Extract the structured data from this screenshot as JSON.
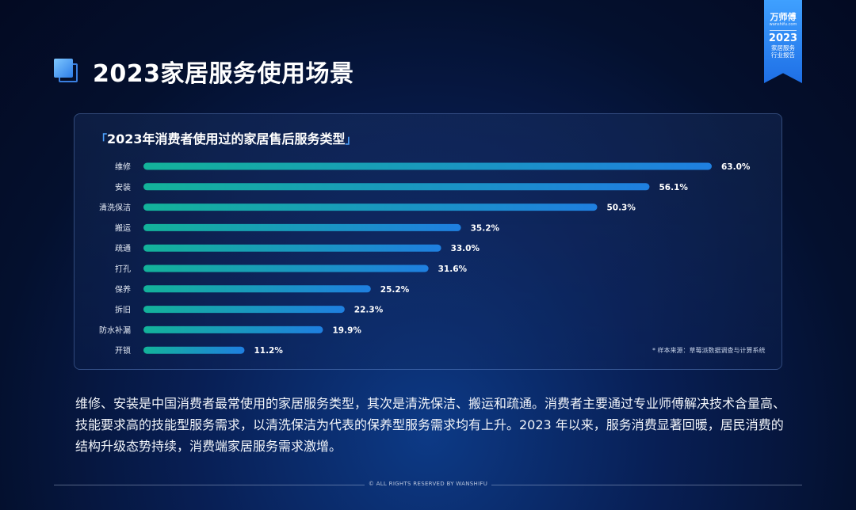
{
  "header": {
    "title": "2023家居服务使用场景"
  },
  "ribbon": {
    "brand": "万师傅",
    "site": "wanshifu.com",
    "year": "2023",
    "line1": "家居服务",
    "line2": "行业报告"
  },
  "chart_data": {
    "type": "bar",
    "orientation": "horizontal",
    "title": "2023年消费者使用过的家居售后服务类型",
    "categories": [
      "维修",
      "安装",
      "清洗保洁",
      "搬运",
      "疏通",
      "打孔",
      "保养",
      "拆旧",
      "防水补漏",
      "开锁"
    ],
    "values": [
      63.0,
      56.1,
      50.3,
      35.2,
      33.0,
      31.6,
      25.2,
      22.3,
      19.9,
      11.2
    ],
    "value_labels": [
      "63.0%",
      "56.1%",
      "50.3%",
      "35.2%",
      "33.0%",
      "31.6%",
      "25.2%",
      "22.3%",
      "19.9%",
      "11.2%"
    ],
    "unit": "%",
    "xlim": [
      0,
      63.0
    ],
    "grid": false,
    "bar_gradient": [
      "#13b39a",
      "#1f7fe0"
    ]
  },
  "source_note": "* 样本来源：草莓派数据调查与计算系统",
  "body_text": "维修、安装是中国消费者最常使用的家居服务类型，其次是清洗保洁、搬运和疏通。消费者主要通过专业师傅解决技术含量高、技能要求高的技能型服务需求，以清洗保洁为代表的保养型服务需求均有上升。2023 年以来，服务消费显著回暖，居民消费的结构升级态势持续，消费端家居服务需求激增。",
  "footer": "© ALL RIGHTS RESERVED BY WANSHIFU"
}
